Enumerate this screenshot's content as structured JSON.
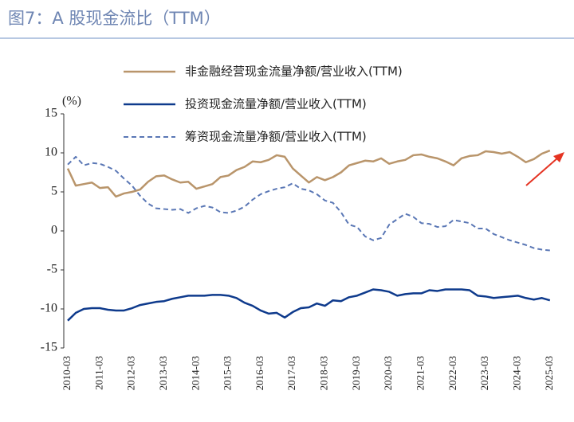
{
  "chart_data": {
    "type": "line",
    "title": "图7：A 股现金流比（TTM）",
    "y_label": "(%)",
    "categories": [
      "2010-03",
      null,
      null,
      null,
      "2011-03",
      null,
      null,
      null,
      "2012-03",
      null,
      null,
      null,
      "2013-03",
      null,
      null,
      null,
      "2014-03",
      null,
      null,
      null,
      "2015-03",
      null,
      null,
      null,
      "2016-03",
      null,
      null,
      null,
      "2017-03",
      null,
      null,
      null,
      "2018-03",
      null,
      null,
      null,
      "2019-03",
      null,
      null,
      null,
      "2020-03",
      null,
      null,
      null,
      "2021-03",
      null,
      null,
      null,
      "2022-03",
      null,
      null,
      null,
      "2023-03",
      null,
      null,
      null,
      "2024-03",
      null,
      null,
      null,
      "2025-03"
    ],
    "series": [
      {
        "name": "非金融经营现金流量净额/营业收入(TTM)",
        "color": "#b9956b",
        "dashed": false,
        "values": [
          8.0,
          5.8,
          6.0,
          6.2,
          5.5,
          5.6,
          4.4,
          4.8,
          5.0,
          5.3,
          6.3,
          7.0,
          7.1,
          6.6,
          6.2,
          6.3,
          5.4,
          5.7,
          6.0,
          6.9,
          7.1,
          7.8,
          8.2,
          8.9,
          8.8,
          9.1,
          9.7,
          9.5,
          8.0,
          7.1,
          6.2,
          6.9,
          6.5,
          6.9,
          7.5,
          8.4,
          8.7,
          9.0,
          8.9,
          9.3,
          8.6,
          8.9,
          9.1,
          9.7,
          9.8,
          9.5,
          9.3,
          8.9,
          8.4,
          9.3,
          9.6,
          9.7,
          10.2,
          10.1,
          9.9,
          10.1,
          9.5,
          8.8,
          9.2,
          9.9,
          10.3
        ]
      },
      {
        "name": "投资现金流量净额/营业收入(TTM)",
        "color": "#0e3a8c",
        "dashed": false,
        "values": [
          -11.5,
          -10.5,
          -10.0,
          -9.9,
          -9.9,
          -10.1,
          -10.2,
          -10.2,
          -9.9,
          -9.5,
          -9.3,
          -9.1,
          -9.0,
          -8.7,
          -8.5,
          -8.3,
          -8.3,
          -8.3,
          -8.2,
          -8.2,
          -8.3,
          -8.6,
          -9.2,
          -9.6,
          -10.2,
          -10.6,
          -10.5,
          -11.1,
          -10.4,
          -9.9,
          -9.8,
          -9.3,
          -9.6,
          -8.9,
          -9.0,
          -8.5,
          -8.3,
          -7.9,
          -7.5,
          -7.6,
          -7.8,
          -8.3,
          -8.1,
          -8.0,
          -8.0,
          -7.6,
          -7.7,
          -7.5,
          -7.5,
          -7.5,
          -7.6,
          -8.3,
          -8.4,
          -8.6,
          -8.5,
          -8.4,
          -8.3,
          -8.6,
          -8.8,
          -8.6,
          -8.9
        ]
      },
      {
        "name": "筹资现金流量净额/营业收入(TTM)",
        "color": "#5a77b5",
        "dashed": true,
        "values": [
          8.5,
          9.5,
          8.4,
          8.7,
          8.6,
          8.2,
          7.7,
          6.7,
          5.8,
          4.5,
          3.5,
          2.9,
          2.8,
          2.7,
          2.8,
          2.3,
          2.9,
          3.2,
          3.0,
          2.4,
          2.3,
          2.6,
          3.1,
          4.0,
          4.7,
          5.1,
          5.4,
          5.6,
          6.1,
          5.4,
          5.2,
          4.7,
          3.9,
          3.6,
          2.4,
          0.8,
          0.5,
          -0.7,
          -1.2,
          -0.9,
          0.8,
          1.5,
          2.2,
          1.8,
          1.0,
          0.9,
          0.5,
          0.6,
          1.4,
          1.2,
          1.0,
          0.3,
          0.3,
          -0.4,
          -0.8,
          -1.2,
          -1.5,
          -1.8,
          -2.2,
          -2.4,
          -2.5
        ]
      }
    ],
    "ylim": [
      -15,
      15
    ],
    "yticks": [
      -15,
      -10,
      -5,
      0,
      5,
      10,
      15
    ],
    "grid": false,
    "legend": "top"
  }
}
